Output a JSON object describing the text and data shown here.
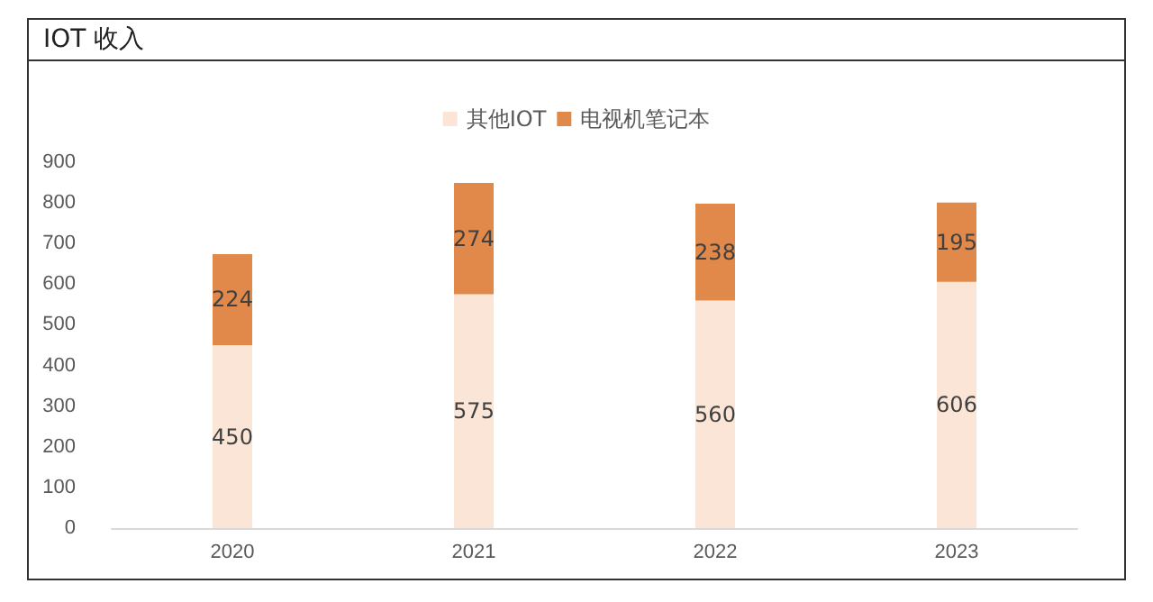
{
  "chart_data": {
    "type": "bar",
    "title": "IOT 收入",
    "categories": [
      "2020",
      "2021",
      "2022",
      "2023"
    ],
    "stacked": true,
    "series": [
      {
        "name": "其他IOT",
        "color": "#fbe5d6",
        "values": [
          450,
          575,
          560,
          606
        ]
      },
      {
        "name": "电视机笔记本",
        "color": "#e0894a",
        "values": [
          224,
          274,
          238,
          195
        ]
      }
    ],
    "ylim": [
      0,
      900
    ],
    "yticks": [
      0,
      100,
      200,
      300,
      400,
      500,
      600,
      700,
      800,
      900
    ],
    "grid": false,
    "legend": "top",
    "data_labels": true
  }
}
